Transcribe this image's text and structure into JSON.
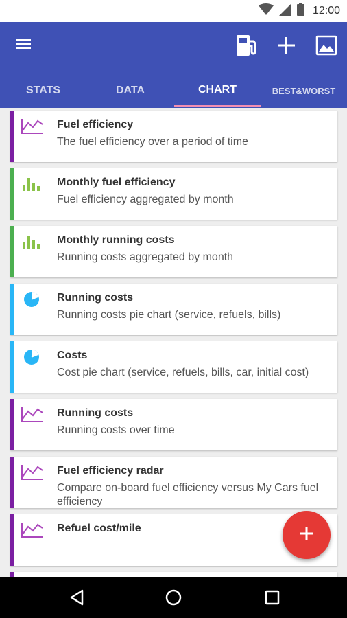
{
  "status_bar": {
    "time": "12:00",
    "icons": [
      "wifi-icon",
      "signal-icon",
      "battery-icon"
    ]
  },
  "app_bar": {
    "background": "#3f51b5",
    "actions": [
      "menu-icon",
      "fuel-pump-icon",
      "add-icon",
      "image-icon"
    ],
    "tabs": [
      {
        "label": "STATS"
      },
      {
        "label": "DATA"
      },
      {
        "label": "CHART",
        "active": true
      },
      {
        "label": "BEST&WORST"
      }
    ]
  },
  "colors": {
    "purple": "#7b1fa2",
    "green": "#8bc34a",
    "blue": "#29b6f6",
    "fab": "#e53935"
  },
  "charts": [
    {
      "title": "Fuel efficiency",
      "description": "The fuel efficiency over a period of time",
      "icon": "line-chart-icon"
    },
    {
      "title": "Monthly fuel efficiency",
      "description": "Fuel efficiency aggregated by month",
      "icon": "bar-chart-icon"
    },
    {
      "title": "Monthly running costs",
      "description": "Running costs aggregated by month",
      "icon": "bar-chart-icon"
    },
    {
      "title": "Running costs",
      "description": "Running costs pie chart (service, refuels, bills)",
      "icon": "pie-chart-icon"
    },
    {
      "title": "Costs",
      "description": "Cost pie chart (service, refuels, bills, car, initial cost)",
      "icon": "pie-chart-icon"
    },
    {
      "title": "Running costs",
      "description": "Running costs over time",
      "icon": "line-chart-icon"
    },
    {
      "title": "Fuel efficiency radar",
      "description": "Compare on-board fuel efficiency versus My Cars fuel efficiency",
      "icon": "line-chart-icon"
    },
    {
      "title": "Refuel cost/mile",
      "description": "",
      "icon": "line-chart-icon"
    }
  ],
  "fab": {
    "icon": "add-icon"
  },
  "nav_bar": {
    "buttons": [
      "back-icon",
      "home-icon",
      "recents-icon"
    ]
  }
}
